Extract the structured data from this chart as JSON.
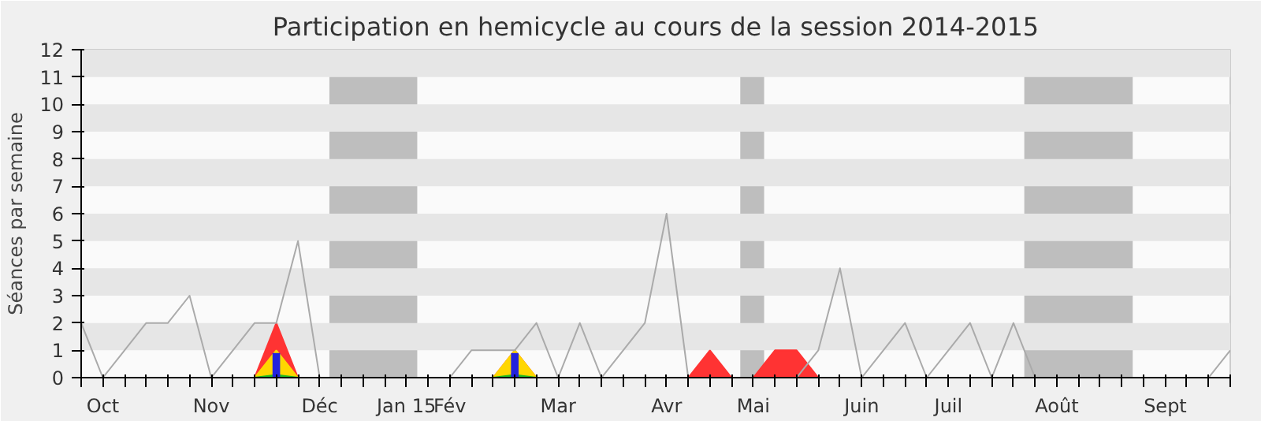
{
  "chart_data": {
    "type": "line",
    "title": "Participation en hemicycle au cours de la session 2014-2015",
    "ylabel": "Séances par semaine",
    "categories": [
      null,
      "Oct",
      null,
      null,
      null,
      null,
      "Nov",
      null,
      null,
      null,
      null,
      "Déc",
      null,
      null,
      null,
      "Jan 15",
      null,
      "Fév",
      null,
      null,
      null,
      null,
      "Mar",
      null,
      null,
      null,
      null,
      "Avr",
      null,
      null,
      null,
      "Mai",
      null,
      null,
      null,
      null,
      "Juin",
      null,
      null,
      null,
      "Juil",
      null,
      null,
      null,
      null,
      "Août",
      null,
      null,
      null,
      null,
      "Sept",
      null,
      null,
      null
    ],
    "ylim": [
      0,
      12
    ],
    "yticks": [
      0,
      1,
      2,
      3,
      4,
      5,
      6,
      7,
      8,
      9,
      10,
      11,
      12
    ],
    "grid": false,
    "series": [
      {
        "type": "area",
        "color": "#ff3333",
        "values": [
          0,
          0,
          0,
          0,
          0,
          0,
          0,
          0,
          0,
          2,
          0,
          0,
          0,
          0,
          0,
          0,
          0,
          0,
          0,
          0,
          1,
          0,
          0,
          0,
          0,
          0,
          0,
          0,
          0,
          1,
          0,
          0,
          1,
          1,
          0,
          0,
          0,
          0,
          0,
          0,
          0,
          0,
          0,
          0,
          0,
          0,
          0,
          0,
          0,
          0,
          0,
          0,
          0,
          0
        ]
      },
      {
        "type": "area",
        "color": "#ffd700",
        "values": [
          0,
          0,
          0,
          0,
          0,
          0,
          0,
          0,
          0,
          1,
          0,
          0,
          0,
          0,
          0,
          0,
          0,
          0,
          0,
          0,
          1,
          0,
          0,
          0,
          0,
          0,
          0,
          0,
          0,
          0,
          0,
          0,
          0,
          0,
          0,
          0,
          0,
          0,
          0,
          0,
          0,
          0,
          0,
          0,
          0,
          0,
          0,
          0,
          0,
          0,
          0,
          0,
          0,
          0
        ]
      },
      {
        "type": "area",
        "color": "#22bb22",
        "values": [
          0,
          0,
          0,
          0,
          0,
          0,
          0,
          0,
          0,
          0.1,
          0,
          0,
          0,
          0,
          0,
          0,
          0,
          0,
          0,
          0,
          0.1,
          0,
          0,
          0,
          0,
          0,
          0,
          0,
          0,
          0,
          0,
          0,
          0,
          0,
          0,
          0,
          0,
          0,
          0,
          0,
          0,
          0,
          0,
          0,
          0,
          0,
          0,
          0,
          0,
          0,
          0,
          0,
          0,
          0
        ]
      },
      {
        "type": "bar",
        "color": "#2222dd",
        "values": [
          null,
          null,
          null,
          null,
          null,
          null,
          null,
          null,
          null,
          0.9,
          null,
          null,
          null,
          null,
          null,
          null,
          null,
          null,
          null,
          null,
          0.9,
          null,
          null,
          null,
          null,
          null,
          null,
          null,
          null,
          null,
          null,
          null,
          null,
          null,
          null,
          null,
          null,
          null,
          null,
          null,
          null,
          null,
          null,
          null,
          null,
          null,
          null,
          null,
          null,
          null,
          null,
          null,
          null,
          null
        ]
      },
      {
        "color": "#aaaaaa",
        "values": [
          2,
          0,
          1,
          2,
          2,
          3,
          0,
          1,
          2,
          2,
          5,
          0,
          0,
          0,
          0,
          0,
          0,
          0,
          1,
          1,
          1,
          2,
          0,
          2,
          0,
          1,
          2,
          6,
          0,
          0,
          0,
          0,
          0,
          0,
          1,
          4,
          0,
          1,
          2,
          0,
          1,
          2,
          0,
          2,
          0,
          0,
          0,
          0,
          0,
          0,
          0,
          0,
          0,
          1
        ]
      }
    ],
    "bands": [
      {
        "axis": "y",
        "from": 1,
        "to": 2,
        "color": "#e6e6e6"
      },
      {
        "axis": "y",
        "from": 3,
        "to": 4,
        "color": "#e6e6e6"
      },
      {
        "axis": "y",
        "from": 5,
        "to": 6,
        "color": "#e6e6e6"
      },
      {
        "axis": "y",
        "from": 7,
        "to": 8,
        "color": "#e6e6e6"
      },
      {
        "axis": "y",
        "from": 9,
        "to": 10,
        "color": "#e6e6e6"
      },
      {
        "axis": "y",
        "from": 11,
        "to": 12,
        "color": "#e6e6e6"
      }
    ]
  }
}
